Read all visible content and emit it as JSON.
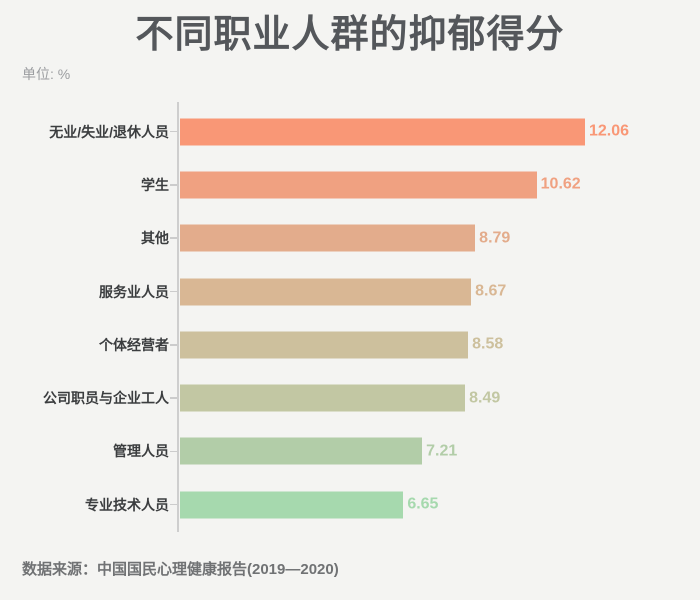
{
  "header": {
    "title": "不同职业人群的抑郁得分",
    "unit_label": "单位: %"
  },
  "chart_data": {
    "type": "bar",
    "orientation": "horizontal",
    "title": "不同职业人群的抑郁得分",
    "unit": "%",
    "categories": [
      "无业/失业/退休人员",
      "学生",
      "其他",
      "服务业人员",
      "个体经营者",
      "公司职员与企业工人",
      "管理人员",
      "专业技术人员"
    ],
    "values": [
      12.06,
      10.62,
      8.79,
      8.67,
      8.58,
      8.49,
      7.21,
      6.65
    ],
    "value_labels": [
      "12.06",
      "10.62",
      "8.79",
      "8.67",
      "8.58",
      "8.49",
      "7.21",
      "6.65"
    ],
    "bar_colors": [
      "#f99776",
      "#f0a181",
      "#e3ac8c",
      "#d9b794",
      "#cdc09d",
      "#c2c7a3",
      "#b2cda8",
      "#a6d9ae"
    ],
    "xlim": [
      0,
      12.6
    ],
    "grid": false,
    "legend": "none",
    "value_labels_shown": true,
    "sorted": "descending"
  },
  "footer": {
    "source": "数据来源：中国国民心理健康报告(2019—2020)"
  },
  "style": {
    "background": "#f4f4f2",
    "title_color": "#54575b",
    "category_label_color": "#3b3d3f",
    "unit_label_color": "#9b9da0",
    "source_color": "#707274",
    "axis_color": "#cccccc"
  }
}
